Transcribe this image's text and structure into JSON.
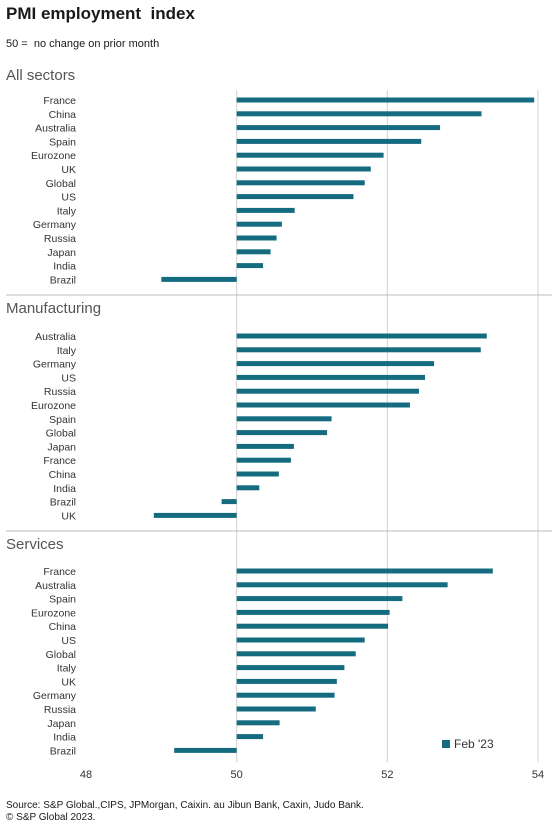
{
  "title": "PMI employment  index",
  "subtitle": "50 =  no change on prior month",
  "chart_data": {
    "type": "bar",
    "orientation": "horizontal",
    "x_ticks": [
      48,
      50,
      52,
      54
    ],
    "xlim": [
      48,
      54
    ],
    "baseline": 50,
    "grid": true,
    "legend": {
      "label": "Feb '23",
      "color": "#156c80",
      "position": "bottom-right"
    },
    "panels": [
      {
        "title": "All sectors",
        "categories": [
          "France",
          "China",
          "Australia",
          "Spain",
          "Eurozone",
          "UK",
          "Global",
          "US",
          "Italy",
          "Germany",
          "Russia",
          "Japan",
          "India",
          "Brazil"
        ],
        "values": [
          53.95,
          53.25,
          52.7,
          52.45,
          51.95,
          51.78,
          51.7,
          51.55,
          50.77,
          50.6,
          50.53,
          50.45,
          50.35,
          49.0
        ]
      },
      {
        "title": "Manufacturing",
        "categories": [
          "Australia",
          "Italy",
          "Germany",
          "US",
          "Russia",
          "Eurozone",
          "Spain",
          "Global",
          "Japan",
          "France",
          "China",
          "India",
          "Brazil",
          "UK"
        ],
        "values": [
          53.32,
          53.24,
          52.62,
          52.5,
          52.42,
          52.3,
          51.26,
          51.2,
          50.76,
          50.72,
          50.56,
          50.3,
          49.8,
          48.9
        ]
      },
      {
        "title": "Services",
        "categories": [
          "France",
          "Australia",
          "Spain",
          "Eurozone",
          "China",
          "US",
          "Global",
          "Italy",
          "UK",
          "Germany",
          "Russia",
          "Japan",
          "India",
          "Brazil"
        ],
        "values": [
          53.4,
          52.8,
          52.2,
          52.03,
          52.01,
          51.7,
          51.58,
          51.43,
          51.33,
          51.3,
          51.05,
          50.57,
          50.35,
          49.17
        ]
      }
    ]
  },
  "source_lines": [
    "Source: S&P Global.,CIPS,  JPMorgan,  Caixin. au Jibun Bank, Caxin, Judo Bank.",
    "© S&P Global 2023."
  ]
}
